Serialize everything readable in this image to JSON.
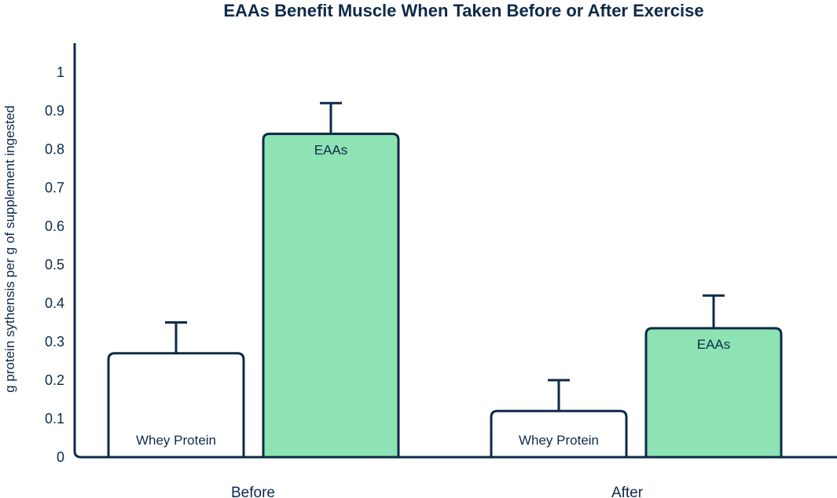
{
  "chart_data": {
    "type": "bar",
    "title": "EAAs Benefit Muscle When Taken Before or After Exercise",
    "xlabel": "",
    "ylabel": "g protein sythensis per g of supplement ingested",
    "ylim": [
      0,
      1
    ],
    "yticks": [
      "0",
      "0.1",
      "0.2",
      "0.3",
      "0.4",
      "0.5",
      "0.6",
      "0.7",
      "0.8",
      "0.9",
      "1"
    ],
    "categories": [
      "Before",
      "After"
    ],
    "series": [
      {
        "name": "Whey Protein",
        "values": [
          0.27,
          0.12
        ],
        "errors": [
          0.08,
          0.08
        ],
        "color": "#ffffff"
      },
      {
        "name": "EAAs",
        "values": [
          0.84,
          0.335
        ],
        "errors": [
          0.08,
          0.085
        ],
        "color": "#8de3b4"
      }
    ],
    "colors": {
      "axis": "#0d2a4a",
      "text": "#0d2a4a"
    },
    "grid": false,
    "legend": "none"
  }
}
